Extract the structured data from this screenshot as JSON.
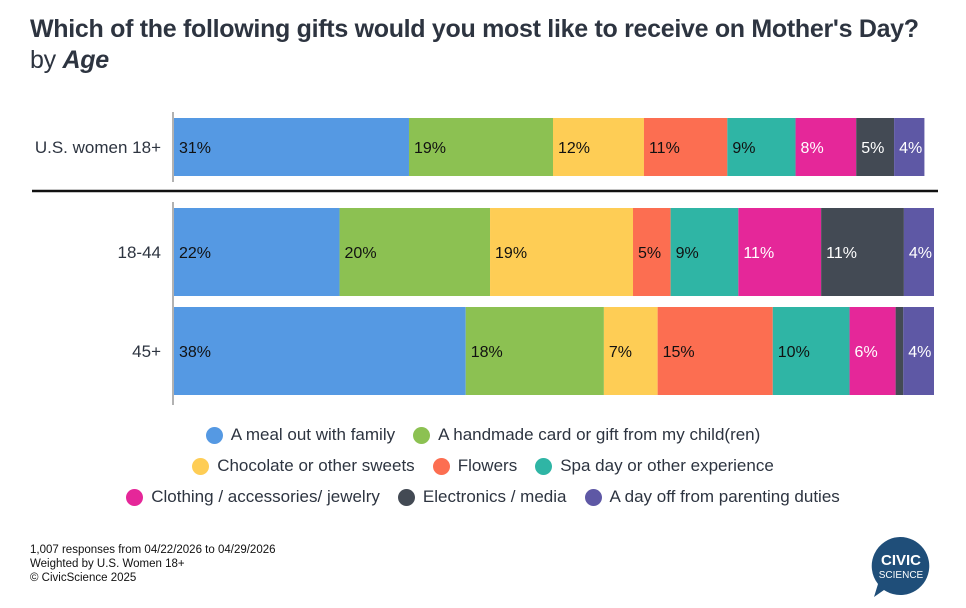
{
  "title": {
    "main": "Which of the following gifts would you most like to receive on Mother's Day?",
    "by": "by",
    "dimension": "Age"
  },
  "chart_data": {
    "type": "bar",
    "orientation": "horizontal",
    "stacked": true,
    "unit": "%",
    "categories": [
      "U.S. women 18+",
      "18-44",
      "45+"
    ],
    "series": [
      {
        "name": "A meal out with family",
        "color": "#5599e3",
        "values": [
          31,
          22,
          38
        ],
        "labels": [
          "31%",
          "22%",
          "38%"
        ],
        "label_color": "#111111"
      },
      {
        "name": "A handmade card or gift from my child(ren)",
        "color": "#8cc152",
        "values": [
          19,
          20,
          18
        ],
        "labels": [
          "19%",
          "20%",
          "18%"
        ],
        "label_color": "#111111"
      },
      {
        "name": "Chocolate or other sweets",
        "color": "#fecd55",
        "values": [
          12,
          19,
          7
        ],
        "labels": [
          "12%",
          "19%",
          "7%"
        ],
        "label_color": "#111111"
      },
      {
        "name": "Flowers",
        "color": "#fc6e51",
        "values": [
          11,
          5,
          15
        ],
        "labels": [
          "11%",
          "5%",
          "15%"
        ],
        "label_color": "#111111"
      },
      {
        "name": "Spa day or other experience",
        "color": "#2fb5a5",
        "values": [
          9,
          9,
          10
        ],
        "labels": [
          "9%",
          "9%",
          "10%"
        ],
        "label_color": "#111111"
      },
      {
        "name": "Clothing / accessories/ jewelry",
        "color": "#e52799",
        "values": [
          8,
          11,
          6
        ],
        "labels": [
          "8%",
          "11%",
          "6%"
        ],
        "label_color": "#ffffff"
      },
      {
        "name": "Electronics / media",
        "color": "#434a54",
        "values": [
          5,
          11,
          1
        ],
        "labels": [
          "5%",
          "11%",
          ""
        ],
        "label_color": "#ffffff"
      },
      {
        "name": "A day off from parenting duties",
        "color": "#5e58a5",
        "values": [
          4,
          4,
          4
        ],
        "labels": [
          "4%",
          "4%",
          "4%"
        ],
        "label_color": "#ffffff"
      }
    ],
    "xlim": [
      0,
      100
    ],
    "legend": "bottom",
    "grid": false
  },
  "footer": {
    "line1": "1,007 responses from 04/22/2026 to 04/29/2026",
    "line2": "Weighted by U.S. Women 18+",
    "line3": "© CivicScience 2025"
  },
  "logo": {
    "line1": "CIVIC",
    "line2": "SCIENCE",
    "color": "#1f4e79"
  }
}
